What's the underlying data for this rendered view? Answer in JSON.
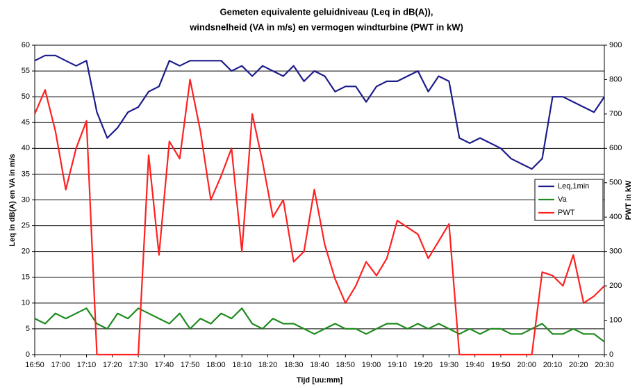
{
  "chart_data": {
    "type": "line",
    "title": "Gemeten equivalente geluidniveau (Leq in dB(A)),",
    "subtitle": "windsnelheid (VA in m/s) en vermogen windturbine (PWT in kW)",
    "x_label": "Tijd [uu:mm]",
    "y_label": "Leq in dB(A) en VA in m/s",
    "y2_label": "PWT in kW",
    "x": [
      "16:50",
      "16:54",
      "16:58",
      "17:02",
      "17:06",
      "17:10",
      "17:14",
      "17:18",
      "17:22",
      "17:26",
      "17:30",
      "17:34",
      "17:38",
      "17:42",
      "17:46",
      "17:50",
      "17:54",
      "17:58",
      "18:02",
      "18:06",
      "18:10",
      "18:14",
      "18:18",
      "18:22",
      "18:26",
      "18:30",
      "18:34",
      "18:38",
      "18:42",
      "18:46",
      "18:50",
      "18:54",
      "18:58",
      "19:02",
      "19:06",
      "19:10",
      "19:14",
      "19:18",
      "19:22",
      "19:26",
      "19:30",
      "19:34",
      "19:38",
      "19:42",
      "19:46",
      "19:50",
      "19:54",
      "19:58",
      "20:02",
      "20:06",
      "20:10",
      "20:14",
      "20:18",
      "20:22",
      "20:26",
      "20:30"
    ],
    "xlim": [
      "16:50",
      "20:30"
    ],
    "xticks": [
      "16:50",
      "17:00",
      "17:10",
      "17:20",
      "17:30",
      "17:40",
      "17:50",
      "18:00",
      "18:10",
      "18:20",
      "18:30",
      "18:40",
      "18:50",
      "19:00",
      "19:10",
      "19:20",
      "19:30",
      "19:40",
      "19:50",
      "20:00",
      "20:10",
      "20:20",
      "20:30"
    ],
    "ylim": [
      0,
      60
    ],
    "yticks": [
      0,
      5,
      10,
      15,
      20,
      25,
      30,
      35,
      40,
      45,
      50,
      55,
      60
    ],
    "y2lim": [
      0,
      900
    ],
    "y2ticks": [
      0,
      100,
      200,
      300,
      400,
      500,
      600,
      700,
      800,
      900
    ],
    "grid": true,
    "legend": "right",
    "series": [
      {
        "name": "Leq,1min",
        "color": "#1c1c8a",
        "values": [
          57,
          58,
          58,
          57,
          56,
          57,
          47,
          42,
          44,
          47,
          48,
          51,
          52,
          57,
          56,
          57,
          57,
          57,
          57,
          55,
          56,
          54,
          56,
          55,
          54,
          56,
          53,
          55,
          54,
          51,
          52,
          52,
          49,
          52,
          53,
          53,
          54,
          55,
          51,
          54,
          53,
          42,
          41,
          42,
          41,
          40,
          38,
          37,
          36,
          38,
          50,
          50,
          49,
          48,
          47,
          50
        ]
      },
      {
        "name": "Va",
        "color": "#1e8a1e",
        "values": [
          7,
          6,
          8,
          7,
          8,
          9,
          6,
          5,
          8,
          7,
          9,
          8,
          7,
          6,
          8,
          5,
          7,
          6,
          8,
          7,
          9,
          6,
          5,
          7,
          6,
          6,
          5,
          4,
          5,
          6,
          5,
          5,
          4,
          5,
          6,
          6,
          5,
          6,
          5,
          6,
          5,
          4,
          5,
          4,
          5,
          5,
          4,
          4,
          5,
          6,
          4,
          4,
          5,
          4,
          4,
          2.5
        ]
      },
      {
        "name": "PWT",
        "color": "#ff2020",
        "axis": "y2",
        "values": [
          700,
          770,
          650,
          480,
          600,
          680,
          0,
          0,
          0,
          0,
          0,
          580,
          290,
          620,
          570,
          800,
          650,
          450,
          520,
          600,
          300,
          700,
          560,
          400,
          450,
          270,
          300,
          480,
          320,
          220,
          150,
          200,
          270,
          230,
          280,
          390,
          370,
          350,
          280,
          330,
          380,
          0,
          0,
          0,
          0,
          0,
          0,
          0,
          0,
          240,
          230,
          200,
          290,
          150,
          170,
          200
        ]
      }
    ]
  }
}
